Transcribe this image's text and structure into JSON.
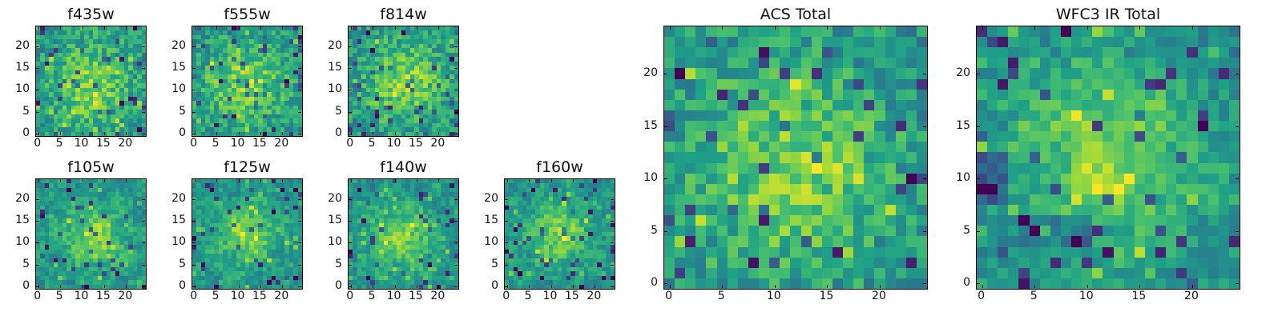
{
  "chart_data": [
    {
      "type": "heatmap",
      "title": "f435w",
      "x_range": [
        -0.5,
        24.5
      ],
      "y_range": [
        -0.5,
        24.5
      ],
      "x_ticks": [
        0,
        5,
        10,
        15,
        20
      ],
      "y_ticks": [
        0,
        5,
        10,
        15,
        20
      ],
      "x_tick_labels": [
        "0",
        "5",
        "10",
        "15",
        "20"
      ],
      "y_tick_labels": [
        "0",
        "5",
        "10",
        "15",
        "20"
      ],
      "grid_size": 25,
      "peak": [
        12.0,
        11.0
      ],
      "pattern": "noisy green-yellow pixels with a weak central enhancement",
      "seed": 43
    },
    {
      "type": "heatmap",
      "title": "f555w",
      "x_range": [
        -0.5,
        24.5
      ],
      "y_range": [
        -0.5,
        24.5
      ],
      "x_ticks": [
        0,
        5,
        10,
        15,
        20
      ],
      "y_ticks": [
        0,
        5,
        10,
        15,
        20
      ],
      "x_tick_labels": [
        "0",
        "5",
        "10",
        "15",
        "20"
      ],
      "y_tick_labels": [
        "0",
        "5",
        "10",
        "15",
        "20"
      ],
      "grid_size": 25,
      "peak": [
        11.5,
        11.5
      ],
      "pattern": "noisy green-yellow pixels with scattered dark pixels",
      "seed": 55
    },
    {
      "type": "heatmap",
      "title": "f814w",
      "x_range": [
        -0.5,
        24.5
      ],
      "y_range": [
        -0.5,
        24.5
      ],
      "x_ticks": [
        0,
        5,
        10,
        15,
        20
      ],
      "y_ticks": [
        0,
        5,
        10,
        15,
        20
      ],
      "x_tick_labels": [
        "0",
        "5",
        "10",
        "15",
        "20"
      ],
      "y_tick_labels": [
        "0",
        "5",
        "10",
        "15",
        "20"
      ],
      "grid_size": 25,
      "peak": [
        12.0,
        12.0
      ],
      "pattern": "noisy pixels with a brighter central region",
      "seed": 81
    },
    {
      "type": "heatmap",
      "title": "f105w",
      "x_range": [
        -0.5,
        24.5
      ],
      "y_range": [
        -0.5,
        24.5
      ],
      "x_ticks": [
        0,
        5,
        10,
        15,
        20
      ],
      "y_ticks": [
        0,
        5,
        10,
        15,
        20
      ],
      "x_tick_labels": [
        "0",
        "5",
        "10",
        "15",
        "20"
      ],
      "y_tick_labels": [
        "0",
        "5",
        "10",
        "15",
        "20"
      ],
      "grid_size": 25,
      "peak": [
        12.5,
        11.5
      ],
      "pattern": "smoother green-yellow field with bright central source",
      "seed": 105
    },
    {
      "type": "heatmap",
      "title": "f125w",
      "x_range": [
        -0.5,
        24.5
      ],
      "y_range": [
        -0.5,
        24.5
      ],
      "x_ticks": [
        0,
        5,
        10,
        15,
        20
      ],
      "y_ticks": [
        0,
        5,
        10,
        15,
        20
      ],
      "x_tick_labels": [
        "0",
        "5",
        "10",
        "15",
        "20"
      ],
      "y_tick_labels": [
        "0",
        "5",
        "10",
        "15",
        "20"
      ],
      "grid_size": 25,
      "peak": [
        12.0,
        12.0
      ],
      "pattern": "smoother field with a broad bright central source",
      "seed": 125
    },
    {
      "type": "heatmap",
      "title": "f140w",
      "x_range": [
        -0.5,
        24.5
      ],
      "y_range": [
        -0.5,
        24.5
      ],
      "x_ticks": [
        0,
        5,
        10,
        15,
        20
      ],
      "y_ticks": [
        0,
        5,
        10,
        15,
        20
      ],
      "x_tick_labels": [
        "0",
        "5",
        "10",
        "15",
        "20"
      ],
      "y_tick_labels": [
        "0",
        "5",
        "10",
        "15",
        "20"
      ],
      "grid_size": 25,
      "peak": [
        12.0,
        11.0
      ],
      "pattern": "smoother field with bright central source and dark speckles",
      "seed": 140
    },
    {
      "type": "heatmap",
      "title": "f160w",
      "x_range": [
        -0.5,
        24.5
      ],
      "y_range": [
        -0.5,
        24.5
      ],
      "x_ticks": [
        0,
        5,
        10,
        15,
        20
      ],
      "y_ticks": [
        0,
        5,
        10,
        15,
        20
      ],
      "x_tick_labels": [
        "0",
        "5",
        "10",
        "15",
        "20"
      ],
      "y_tick_labels": [
        "0",
        "5",
        "10",
        "15",
        "20"
      ],
      "grid_size": 25,
      "peak": [
        12.0,
        12.0
      ],
      "pattern": "smoother field with central enhancement and several dark minima",
      "seed": 160
    },
    {
      "type": "heatmap",
      "title": "ACS Total",
      "x_range": [
        -0.5,
        24.5
      ],
      "y_range": [
        -0.5,
        24.5
      ],
      "x_ticks": [
        0,
        5,
        10,
        15,
        20
      ],
      "y_ticks": [
        0,
        5,
        10,
        15,
        20
      ],
      "x_tick_labels": [
        "0",
        "5",
        "10",
        "15",
        "20"
      ],
      "y_tick_labels": [
        "0",
        "5",
        "10",
        "15",
        "20"
      ],
      "grid_size": 25,
      "peak": [
        11.0,
        11.0
      ],
      "pattern": "combined ACS image with bright center and scattered dark pixels",
      "seed": 200
    },
    {
      "type": "heatmap",
      "title": "WFC3 IR Total",
      "x_range": [
        -0.5,
        24.5
      ],
      "y_range": [
        -0.5,
        24.5
      ],
      "x_ticks": [
        0,
        5,
        10,
        15,
        20
      ],
      "y_ticks": [
        0,
        5,
        10,
        15,
        20
      ],
      "x_tick_labels": [
        "0",
        "5",
        "10",
        "15",
        "20"
      ],
      "y_tick_labels": [
        "0",
        "5",
        "10",
        "15",
        "20"
      ],
      "grid_size": 25,
      "peak": [
        12.0,
        12.0
      ],
      "pattern": "combined WFC3 IR image with bright center and darker lower-left structure",
      "seed": 300
    }
  ]
}
